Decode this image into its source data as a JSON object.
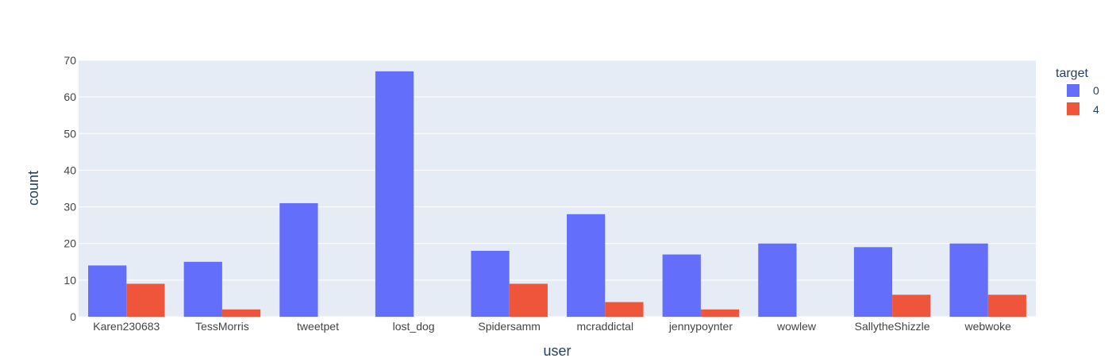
{
  "chart_data": {
    "type": "bar",
    "barmode": "group",
    "categories": [
      "Karen230683",
      "TessMorris",
      "tweetpet",
      "lost_dog",
      "Spidersamm",
      "mcraddictal",
      "jennypoynter",
      "wowlew",
      "SallytheShizzle",
      "webwoke"
    ],
    "series": [
      {
        "name": "0",
        "color": "#636efa",
        "values": [
          14,
          15,
          31,
          67,
          18,
          28,
          17,
          20,
          19,
          20
        ]
      },
      {
        "name": "4",
        "color": "#ef553b",
        "values": [
          9,
          2,
          0,
          0,
          9,
          4,
          2,
          0,
          6,
          6
        ]
      }
    ],
    "xlabel": "user",
    "ylabel": "count",
    "ylim": [
      0,
      70
    ],
    "yticks": [
      0,
      10,
      20,
      30,
      40,
      50,
      60,
      70
    ],
    "grid": true,
    "plot_background": "#e5ecf6",
    "legend": {
      "title": "target",
      "placement": "top-right"
    }
  }
}
